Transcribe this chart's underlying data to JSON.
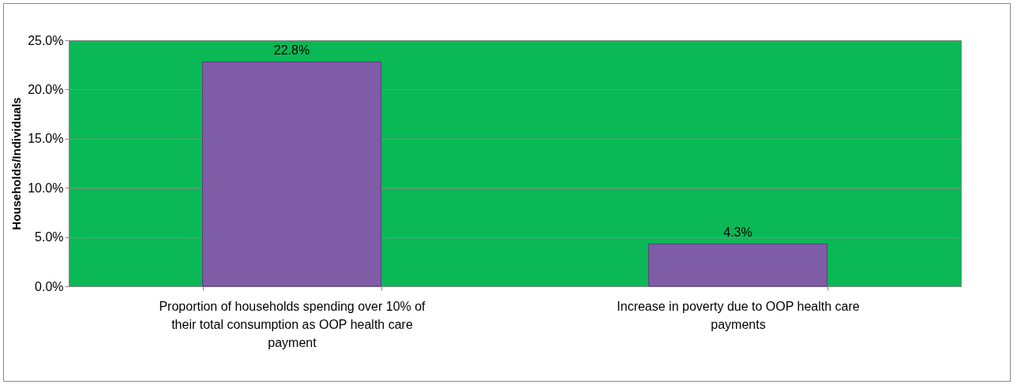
{
  "chart_data": {
    "type": "bar",
    "ylabel": "Households/Individuals",
    "categories": [
      "Proportion of households spending over 10% of their total consumption as OOP health care payment",
      "Increase in poverty due to OOP health care payments"
    ],
    "values": [
      22.8,
      4.3
    ],
    "value_labels": [
      "22.8%",
      "4.3%"
    ],
    "color": "#7e5ca6",
    "ylim": [
      0,
      25
    ],
    "yticks": [
      {
        "value": 0,
        "label": "0.0%"
      },
      {
        "value": 5,
        "label": "5.0%"
      },
      {
        "value": 10,
        "label": "10.0%"
      },
      {
        "value": 15,
        "label": "15.0%"
      },
      {
        "value": 20,
        "label": "20.0%"
      },
      {
        "value": 25,
        "label": "25.0%"
      }
    ],
    "grid": "y"
  }
}
